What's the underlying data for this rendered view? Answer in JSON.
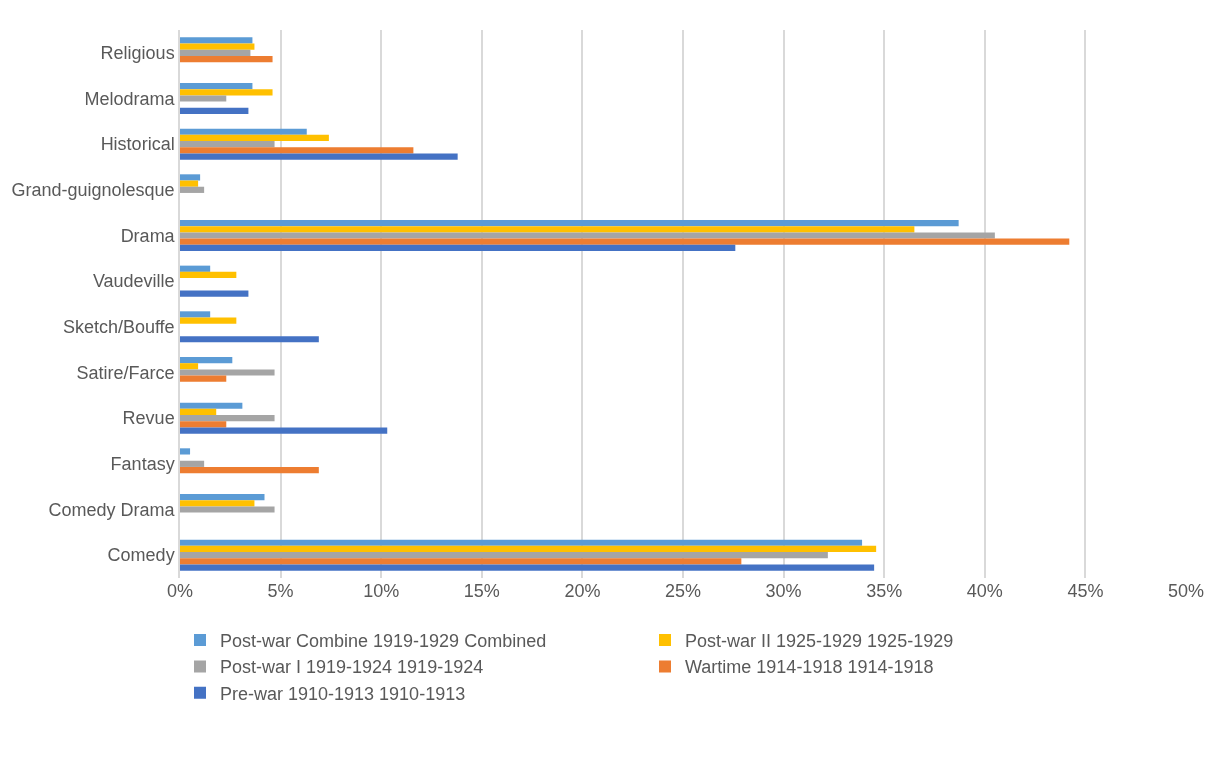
{
  "chart_data": {
    "type": "bar",
    "orientation": "horizontal",
    "categories": [
      "Religious",
      "Melodrama",
      "Historical",
      "Grand-guignolesque",
      "Drama",
      "Vaudeville",
      "Sketch/Bouffe",
      "Satire/Farce",
      "Revue",
      "Fantasy",
      "Comedy Drama",
      "Comedy"
    ],
    "series": [
      {
        "name": "Post-war Combine 1919-1929 Combined",
        "color": "#5b9bd5",
        "values": [
          3.6,
          3.6,
          6.3,
          1.0,
          38.7,
          1.5,
          1.5,
          2.6,
          3.1,
          0.5,
          4.2,
          33.9
        ]
      },
      {
        "name": "Post-war II 1925-1929 1925-1929",
        "color": "#ffc000",
        "values": [
          3.7,
          4.6,
          7.4,
          0.9,
          36.5,
          2.8,
          2.8,
          0.9,
          1.8,
          null,
          3.7,
          34.6
        ]
      },
      {
        "name": "Post-war I 1919-1924 1919-1924",
        "color": "#a5a5a5",
        "values": [
          3.5,
          2.3,
          4.7,
          1.2,
          40.5,
          null,
          null,
          4.7,
          4.7,
          1.2,
          4.7,
          32.2
        ]
      },
      {
        "name": "Wartime 1914-1918 1914-1918",
        "color": "#ed7d31",
        "values": [
          4.6,
          null,
          11.6,
          null,
          44.2,
          null,
          null,
          2.3,
          2.3,
          6.9,
          null,
          27.9
        ]
      },
      {
        "name": "Pre-war 1910-1913 1910-1913",
        "color": "#4472c4",
        "values": [
          null,
          3.4,
          13.8,
          null,
          27.6,
          3.4,
          6.9,
          null,
          10.3,
          null,
          null,
          34.5
        ]
      }
    ],
    "xlim": [
      0,
      50
    ],
    "xticks": [
      {
        "value": 0,
        "label": "0%"
      },
      {
        "value": 5,
        "label": "5%"
      },
      {
        "value": 10,
        "label": "10%"
      },
      {
        "value": 15,
        "label": "15%"
      },
      {
        "value": 20,
        "label": "20%"
      },
      {
        "value": 25,
        "label": "25%"
      },
      {
        "value": 30,
        "label": "30%"
      },
      {
        "value": 35,
        "label": "35%"
      },
      {
        "value": 40,
        "label": "40%"
      },
      {
        "value": 45,
        "label": "45%"
      },
      {
        "value": 50,
        "label": "50%"
      }
    ],
    "grid": "x",
    "legend": "bottom"
  }
}
